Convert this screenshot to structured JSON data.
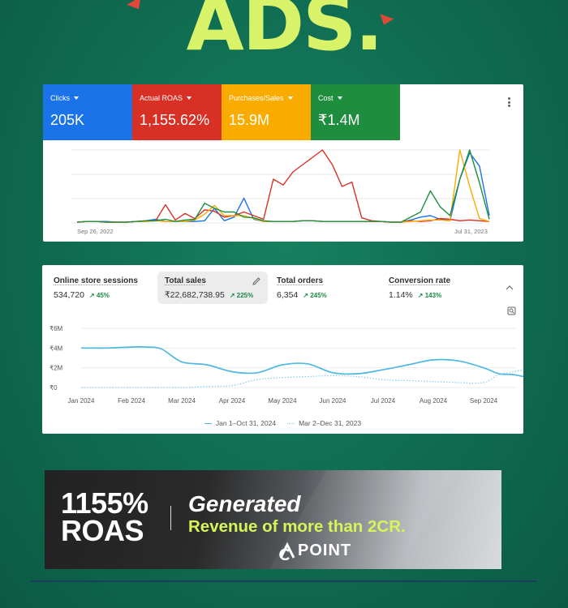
{
  "headline": "ADS.",
  "ads_panel": {
    "metrics": [
      {
        "label": "Clicks",
        "value": "205K",
        "color": "#1a73e8"
      },
      {
        "label": "Actual ROAS",
        "value": "1,155.62%",
        "color": "#d93025"
      },
      {
        "label": "Purchases/Sales",
        "value": "15.9M",
        "color": "#f9ab00"
      },
      {
        "label": "Cost",
        "value": "₹1.4M",
        "color": "#1e8e3e"
      }
    ],
    "date_start": "Sep 26, 2022",
    "date_end": "Jul 31, 2023"
  },
  "shop_panel": {
    "metrics": [
      {
        "label": "Online store sessions",
        "value": "534,720",
        "change": "45%"
      },
      {
        "label": "Total sales",
        "value": "₹22,682,738.95",
        "change": "225%"
      },
      {
        "label": "Total orders",
        "value": "6,354",
        "change": "245%"
      },
      {
        "label": "Conversion rate",
        "value": "1.14%",
        "change": "143%"
      }
    ],
    "legend_current": "Jan 1–Oct 31, 2024",
    "legend_previous": "Mar 2–Dec 31, 2023"
  },
  "chart_data": [
    {
      "type": "line",
      "title": "",
      "x_start": "Sep 26, 2022",
      "x_end": "Jul 31, 2023",
      "grid": true,
      "series": [
        {
          "name": "Clicks",
          "color": "#1a73e8",
          "values": [
            1,
            2,
            2,
            2,
            1,
            1,
            2,
            3,
            5,
            2,
            2,
            2,
            2,
            3,
            20,
            3,
            8,
            34,
            5,
            2,
            2,
            2,
            2,
            3,
            3,
            2,
            2,
            2,
            2,
            2,
            2,
            2,
            1,
            1,
            4,
            8,
            10,
            5,
            3,
            60,
            96,
            78,
            10
          ]
        },
        {
          "name": "Actual ROAS",
          "color": "#d93025",
          "values": [
            1,
            2,
            2,
            1,
            1,
            1,
            2,
            2,
            3,
            25,
            4,
            13,
            6,
            18,
            16,
            8,
            10,
            15,
            10,
            5,
            60,
            52,
            70,
            80,
            90,
            100,
            80,
            50,
            56,
            7,
            3,
            2,
            1,
            1,
            3,
            2,
            3,
            6,
            5,
            3,
            4,
            3,
            2
          ]
        },
        {
          "name": "Purchases/Sales",
          "color": "#f9ab00",
          "values": [
            1,
            2,
            2,
            1,
            1,
            1,
            2,
            2,
            3,
            2,
            2,
            2,
            4,
            12,
            24,
            10,
            10,
            10,
            6,
            2,
            2,
            2,
            2,
            3,
            3,
            2,
            2,
            2,
            2,
            2,
            2,
            2,
            1,
            1,
            2,
            3,
            4,
            4,
            3,
            100,
            50,
            6,
            2
          ]
        },
        {
          "name": "Cost",
          "color": "#1e8e3e",
          "values": [
            1,
            2,
            2,
            1,
            1,
            1,
            2,
            3,
            3,
            5,
            2,
            4,
            5,
            27,
            20,
            15,
            15,
            8,
            7,
            3,
            2,
            2,
            2,
            3,
            3,
            2,
            2,
            2,
            2,
            2,
            2,
            2,
            1,
            1,
            8,
            15,
            44,
            22,
            10,
            60,
            100,
            55,
            5
          ]
        }
      ]
    },
    {
      "type": "line",
      "title": "",
      "x_ticks": [
        "Jan 2024",
        "Feb 2024",
        "Mar 2024",
        "Apr 2024",
        "May 2024",
        "Jun 2024",
        "Jul 2024",
        "Aug 2024",
        "Sep 2024"
      ],
      "y_ticks": [
        "₹6M",
        "₹4M",
        "₹2M",
        "₹0"
      ],
      "ylim": [
        0,
        6000000
      ],
      "grid": true,
      "legend_position": "bottom",
      "series": [
        {
          "name": "Jan 1–Oct 31, 2024",
          "style": "solid",
          "color": "#4fb8e0",
          "x": [
            0,
            0.5,
            1,
            1.3,
            1.6,
            2,
            2.5,
            3,
            3.5,
            4,
            4.5,
            5,
            5.5,
            6,
            6.5,
            7,
            7.5,
            8,
            8.3,
            8.6,
            9,
            9.4
          ],
          "values": [
            4000000,
            4000000,
            4100000,
            4100000,
            3900000,
            2600000,
            2300000,
            1600000,
            1500000,
            2300000,
            2400000,
            1500000,
            1400000,
            1800000,
            2300000,
            2800000,
            2700000,
            2000000,
            1400000,
            1300000,
            900000,
            600000
          ]
        },
        {
          "name": "Mar 2–Dec 31, 2023",
          "style": "dotted",
          "color": "#8ad0ee",
          "x": [
            0,
            1,
            2,
            2.5,
            3,
            3.5,
            4,
            4.5,
            5,
            5.5,
            6,
            6.5,
            7,
            7.5,
            8,
            8.3,
            8.6,
            9,
            9.4
          ],
          "values": [
            0,
            0,
            0,
            100000,
            200000,
            800000,
            1000000,
            1100000,
            1200000,
            1100000,
            800000,
            700000,
            600000,
            500000,
            500000,
            1300000,
            1600000,
            2000000,
            2100000
          ]
        }
      ]
    }
  ],
  "banner": {
    "big_line1": "1155%",
    "big_line2": "ROAS",
    "generated": "Generated",
    "revenue": "Revenue of more than 2CR.",
    "logo": "POINT"
  }
}
